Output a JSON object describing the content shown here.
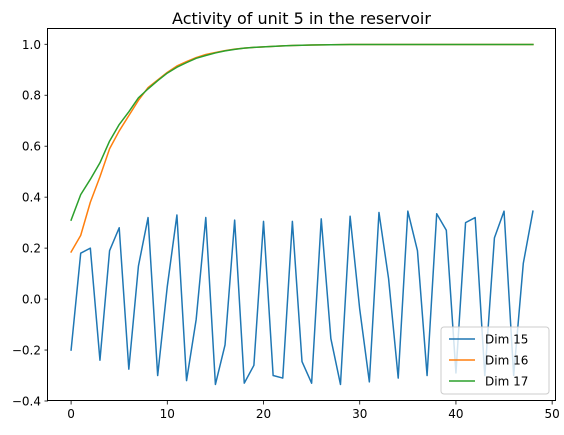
{
  "chart_data": {
    "type": "line",
    "title": "Activity of unit 5 in the reservoir",
    "xlabel": "",
    "ylabel": "",
    "xlim": [
      -2.4,
      50.4
    ],
    "ylim": [
      -0.4,
      1.06
    ],
    "xticks": [
      0,
      10,
      20,
      30,
      40,
      50
    ],
    "xtick_labels": [
      "0",
      "10",
      "20",
      "30",
      "40",
      "50"
    ],
    "yticks": [
      -0.4,
      -0.2,
      0.0,
      0.2,
      0.4,
      0.6,
      0.8,
      1.0
    ],
    "ytick_labels": [
      "−0.4",
      "−0.2",
      "0.0",
      "0.2",
      "0.4",
      "0.6",
      "0.8",
      "1.0"
    ],
    "grid": false,
    "legend": "lower right",
    "x": [
      0,
      1,
      2,
      3,
      4,
      5,
      6,
      7,
      8,
      9,
      10,
      11,
      12,
      13,
      14,
      15,
      16,
      17,
      18,
      19,
      20,
      21,
      22,
      23,
      24,
      25,
      26,
      27,
      28,
      29,
      30,
      31,
      32,
      33,
      34,
      35,
      36,
      37,
      38,
      39,
      40,
      41,
      42,
      43,
      44,
      45,
      46,
      47,
      48
    ],
    "series": [
      {
        "name": "Dim 15",
        "color": "#1f77b4",
        "values": [
          -0.2,
          0.18,
          0.2,
          -0.24,
          0.19,
          0.28,
          -0.275,
          0.13,
          0.32,
          -0.3,
          0.05,
          0.33,
          -0.32,
          -0.08,
          0.32,
          -0.335,
          -0.18,
          0.31,
          -0.33,
          -0.26,
          0.305,
          -0.3,
          -0.31,
          0.305,
          -0.245,
          -0.33,
          0.315,
          -0.155,
          -0.335,
          0.325,
          -0.04,
          -0.325,
          0.34,
          0.08,
          -0.31,
          0.345,
          0.19,
          -0.3,
          0.335,
          0.27,
          -0.29,
          0.3,
          0.32,
          -0.3,
          0.24,
          0.345,
          -0.3,
          0.14,
          0.345
        ]
      },
      {
        "name": "Dim 16",
        "color": "#ff7f0e",
        "values": [
          0.185,
          0.25,
          0.38,
          0.48,
          0.59,
          0.66,
          0.72,
          0.78,
          0.83,
          0.86,
          0.89,
          0.915,
          0.932,
          0.948,
          0.96,
          0.968,
          0.975,
          0.981,
          0.985,
          0.988,
          0.99,
          0.992,
          0.994,
          0.995,
          0.996,
          0.997,
          0.9975,
          0.998,
          0.9985,
          0.999,
          0.999,
          0.999,
          0.999,
          0.999,
          0.999,
          0.999,
          0.999,
          0.999,
          0.999,
          0.999,
          0.999,
          0.999,
          0.999,
          0.999,
          0.999,
          0.999,
          0.999,
          0.999,
          0.999
        ]
      },
      {
        "name": "Dim 17",
        "color": "#2ca02c",
        "values": [
          0.31,
          0.41,
          0.47,
          0.535,
          0.62,
          0.685,
          0.735,
          0.79,
          0.825,
          0.857,
          0.887,
          0.91,
          0.928,
          0.945,
          0.956,
          0.966,
          0.974,
          0.98,
          0.985,
          0.988,
          0.99,
          0.992,
          0.994,
          0.995,
          0.996,
          0.997,
          0.9975,
          0.998,
          0.9985,
          0.999,
          0.999,
          0.999,
          0.999,
          0.999,
          0.999,
          0.999,
          0.999,
          0.999,
          0.999,
          0.999,
          0.999,
          0.999,
          0.999,
          0.999,
          0.999,
          0.999,
          0.999,
          0.999,
          0.999
        ]
      }
    ]
  }
}
